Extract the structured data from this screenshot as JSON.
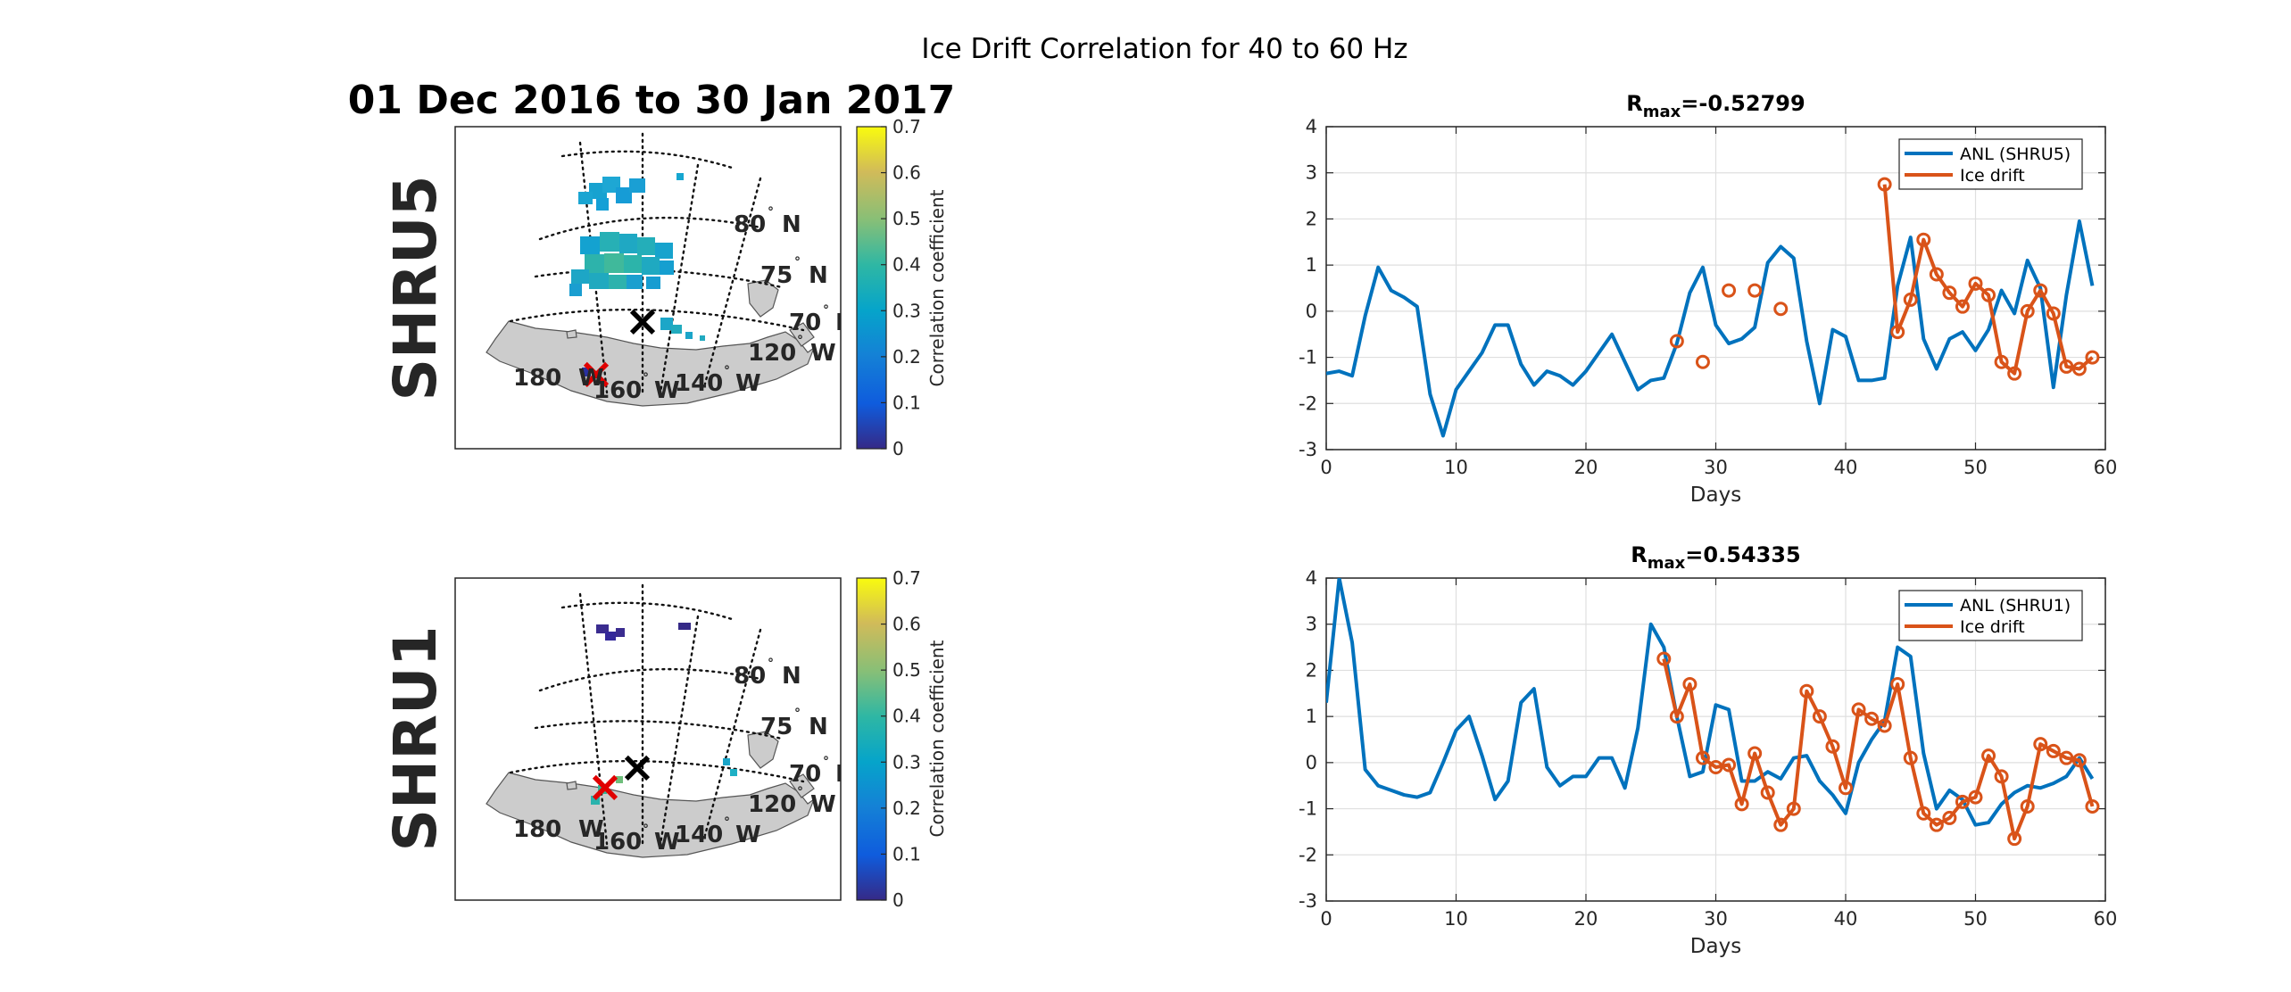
{
  "figure": {
    "suptitle": "Ice Drift Correlation for 40 to 60 Hz",
    "date_range": "01 Dec 2016 to 30 Jan 2017"
  },
  "maps": [
    {
      "station": "SHRU5",
      "colorbar": {
        "label": "Correlation coefficient",
        "ticks": [
          "0",
          "0.1",
          "0.2",
          "0.3",
          "0.4",
          "0.5",
          "0.6",
          "0.7"
        ],
        "range": [
          0,
          0.7
        ]
      },
      "lat_labels": [
        "80",
        "75",
        "70"
      ],
      "lat_suffix": "N",
      "lon_labels": [
        "180",
        "160",
        "140",
        "120"
      ],
      "lon_suffix": "W",
      "degree_mark": "°",
      "black_marker": "×",
      "red_marker": "×"
    },
    {
      "station": "SHRU1",
      "colorbar": {
        "label": "Correlation coefficient",
        "ticks": [
          "0",
          "0.1",
          "0.2",
          "0.3",
          "0.4",
          "0.5",
          "0.6",
          "0.7"
        ],
        "range": [
          0,
          0.7
        ]
      },
      "lat_labels": [
        "80",
        "75",
        "70"
      ],
      "lat_suffix": "N",
      "lon_labels": [
        "180",
        "160",
        "140",
        "120"
      ],
      "lon_suffix": "W",
      "degree_mark": "°",
      "black_marker": "×",
      "red_marker": "×"
    }
  ],
  "chart_data": [
    {
      "type": "line",
      "title_prefix": "R",
      "title_sub": "max",
      "title_value": "=-0.52799",
      "xlabel": "Days",
      "ylabel": "",
      "xlim": [
        0,
        60
      ],
      "ylim": [
        -3,
        4
      ],
      "xticks": [
        0,
        10,
        20,
        30,
        40,
        50,
        60
      ],
      "yticks": [
        -3,
        -2,
        -1,
        0,
        1,
        2,
        3,
        4
      ],
      "grid": true,
      "legend": "top-right",
      "series": [
        {
          "name": "ANL (SHRU5)",
          "color": "#0072BD",
          "marker": "none",
          "x": [
            0,
            1,
            2,
            3,
            4,
            5,
            6,
            7,
            8,
            9,
            10,
            11,
            12,
            13,
            14,
            15,
            16,
            17,
            18,
            19,
            20,
            21,
            22,
            23,
            24,
            25,
            26,
            27,
            28,
            29,
            30,
            31,
            32,
            33,
            34,
            35,
            36,
            37,
            38,
            39,
            40,
            41,
            42,
            43,
            44,
            45,
            46,
            47,
            48,
            49,
            50,
            51,
            52,
            53,
            54,
            55,
            56,
            57,
            58,
            59
          ],
          "y": [
            -1.35,
            -1.3,
            -1.4,
            -0.1,
            0.95,
            0.45,
            0.3,
            0.1,
            -1.8,
            -2.7,
            -1.7,
            -1.3,
            -0.9,
            -0.3,
            -0.3,
            -1.15,
            -1.6,
            -1.3,
            -1.4,
            -1.6,
            -1.3,
            -0.9,
            -0.5,
            -1.1,
            -1.7,
            -1.5,
            -1.45,
            -0.7,
            0.4,
            0.95,
            -0.3,
            -0.7,
            -0.6,
            -0.35,
            1.05,
            1.4,
            1.15,
            -0.65,
            -2.0,
            -0.4,
            -0.55,
            -1.5,
            -1.5,
            -1.45,
            0.55,
            1.6,
            -0.6,
            -1.25,
            -0.6,
            -0.45,
            -0.85,
            -0.4,
            0.45,
            -0.05,
            1.1,
            0.5,
            -1.65,
            0.35,
            1.95,
            0.55
          ]
        },
        {
          "name": "Ice drift",
          "color": "#D95319",
          "marker": "o",
          "x": [
            27,
            29,
            31,
            33,
            35,
            43,
            44,
            45,
            46,
            47,
            48,
            49,
            50,
            51,
            52,
            53,
            54,
            55,
            56,
            57,
            58,
            59
          ],
          "y": [
            -0.65,
            -1.1,
            0.45,
            0.45,
            0.05,
            2.75,
            -0.45,
            0.25,
            1.55,
            0.8,
            0.4,
            0.1,
            0.6,
            0.35,
            -1.1,
            -1.35,
            0.0,
            0.45,
            -0.05,
            -1.2,
            -1.25,
            -1.0
          ],
          "connected_from_index": 5
        }
      ]
    },
    {
      "type": "line",
      "title_prefix": "R",
      "title_sub": "max",
      "title_value": "=0.54335",
      "xlabel": "Days",
      "ylabel": "",
      "xlim": [
        0,
        60
      ],
      "ylim": [
        -3,
        4
      ],
      "xticks": [
        0,
        10,
        20,
        30,
        40,
        50,
        60
      ],
      "yticks": [
        -3,
        -2,
        -1,
        0,
        1,
        2,
        3,
        4
      ],
      "grid": true,
      "legend": "top-right",
      "series": [
        {
          "name": "ANL (SHRU1)",
          "color": "#0072BD",
          "marker": "none",
          "x": [
            0,
            1,
            2,
            3,
            4,
            5,
            6,
            7,
            8,
            9,
            10,
            11,
            12,
            13,
            14,
            15,
            16,
            17,
            18,
            19,
            20,
            21,
            22,
            23,
            24,
            25,
            26,
            27,
            28,
            29,
            30,
            31,
            32,
            33,
            34,
            35,
            36,
            37,
            38,
            39,
            40,
            41,
            42,
            43,
            44,
            45,
            46,
            47,
            48,
            49,
            50,
            51,
            52,
            53,
            54,
            55,
            56,
            57,
            58,
            59
          ],
          "y": [
            1.3,
            4.0,
            2.6,
            -0.15,
            -0.5,
            -0.6,
            -0.7,
            -0.75,
            -0.65,
            0.0,
            0.7,
            1.0,
            0.15,
            -0.8,
            -0.4,
            1.3,
            1.6,
            -0.1,
            -0.5,
            -0.3,
            -0.3,
            0.1,
            0.1,
            -0.55,
            0.75,
            3.0,
            2.5,
            1.0,
            -0.3,
            -0.2,
            1.25,
            1.15,
            -0.4,
            -0.4,
            -0.2,
            -0.35,
            0.1,
            0.15,
            -0.4,
            -0.7,
            -1.1,
            0.0,
            0.5,
            0.9,
            2.5,
            2.3,
            0.2,
            -1.0,
            -0.6,
            -0.8,
            -1.35,
            -1.3,
            -0.9,
            -0.65,
            -0.5,
            -0.55,
            -0.45,
            -0.3,
            0.1,
            -0.35
          ]
        },
        {
          "name": "Ice drift",
          "color": "#D95319",
          "marker": "o",
          "x": [
            26,
            27,
            28,
            29,
            30,
            31,
            32,
            33,
            34,
            35,
            36,
            37,
            38,
            39,
            40,
            41,
            42,
            43,
            44,
            45,
            46,
            47,
            48,
            49,
            50,
            51,
            52,
            53,
            54,
            55,
            56,
            57,
            58,
            59
          ],
          "y": [
            2.25,
            1.0,
            1.7,
            0.1,
            -0.1,
            -0.05,
            -0.9,
            0.2,
            -0.65,
            -1.35,
            -1.0,
            1.55,
            1.0,
            0.35,
            -0.55,
            1.15,
            0.95,
            0.8,
            1.7,
            0.1,
            -1.1,
            -1.35,
            -1.2,
            -0.85,
            -0.75,
            0.15,
            -0.3,
            -1.65,
            -0.95,
            0.4,
            0.25,
            0.1,
            0.05,
            -0.95
          ]
        }
      ]
    }
  ]
}
